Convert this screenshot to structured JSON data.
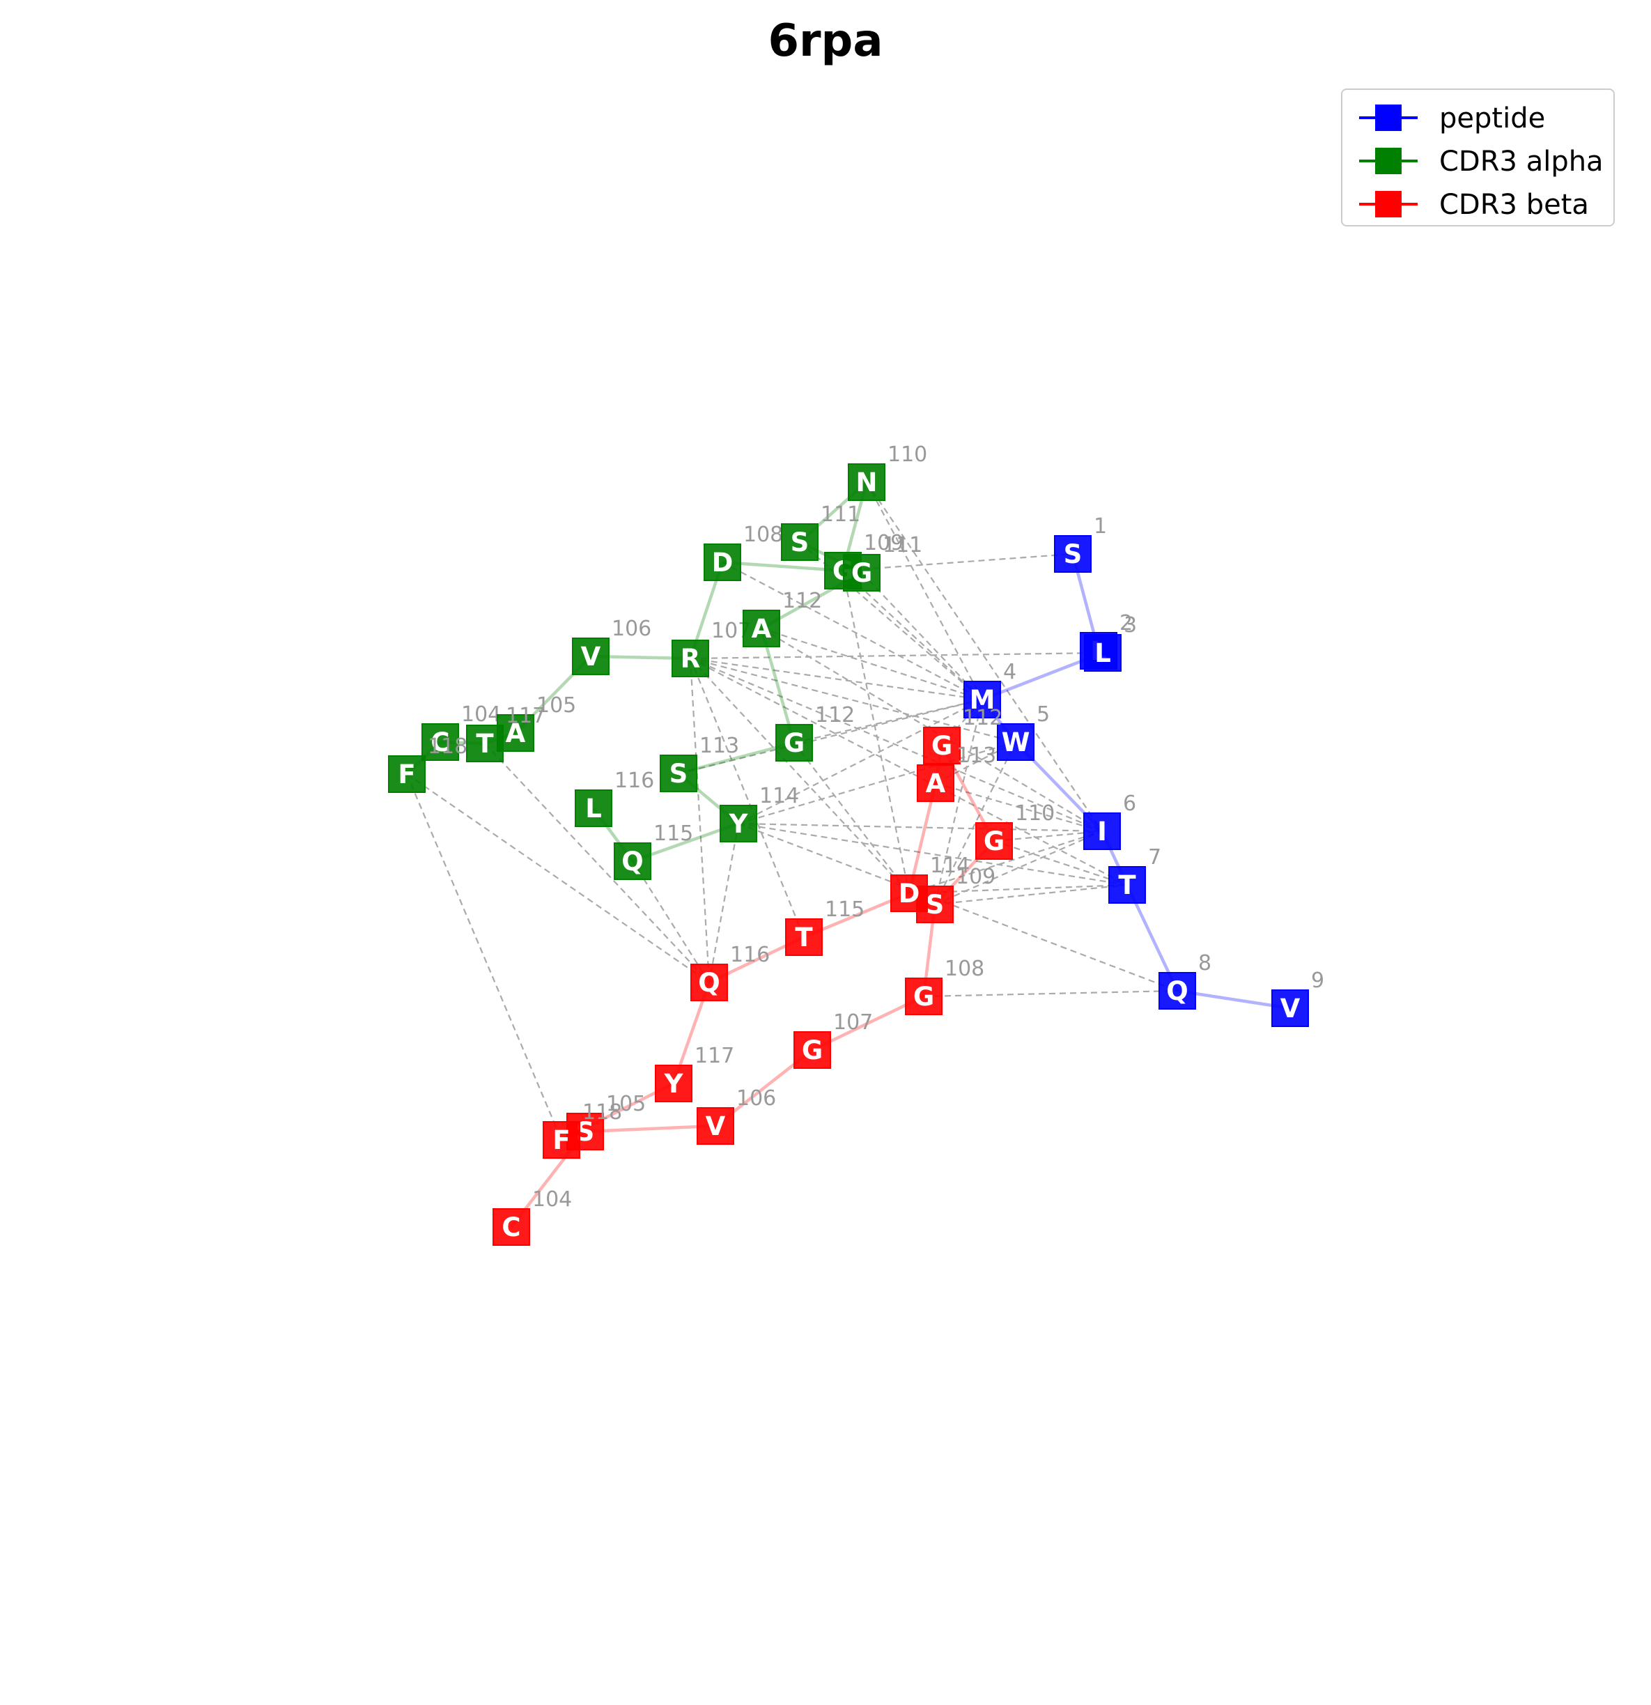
{
  "title": "6rpa",
  "colors": {
    "peptide": "#0000ff",
    "alpha": "#008000",
    "beta": "#ff0000",
    "contact": "#aaaaaa",
    "label": "#999999"
  },
  "legend": [
    {
      "label": "peptide",
      "color": "#0000ff"
    },
    {
      "label": "CDR3 alpha",
      "color": "#008000"
    },
    {
      "label": "CDR3 beta",
      "color": "#ff0000"
    }
  ],
  "chains": [
    {
      "name": "peptide",
      "color": "#0000ff",
      "residues": [
        {
          "aa": "S",
          "num": "1"
        },
        {
          "aa": "L",
          "num": "2"
        },
        {
          "aa": "L",
          "num": "3"
        },
        {
          "aa": "M",
          "num": "4"
        },
        {
          "aa": "W",
          "num": "5"
        },
        {
          "aa": "I",
          "num": "6"
        },
        {
          "aa": "T",
          "num": "7"
        },
        {
          "aa": "Q",
          "num": "8"
        },
        {
          "aa": "V",
          "num": "9"
        }
      ]
    },
    {
      "name": "CDR3 alpha",
      "color": "#008000",
      "residues": [
        {
          "aa": "C",
          "num": "104"
        },
        {
          "aa": "A",
          "num": "105"
        },
        {
          "aa": "V",
          "num": "106"
        },
        {
          "aa": "R",
          "num": "107"
        },
        {
          "aa": "D",
          "num": "108"
        },
        {
          "aa": "G",
          "num": "109"
        },
        {
          "aa": "N",
          "num": "110"
        },
        {
          "aa": "S",
          "num": "111"
        },
        {
          "aa": "G",
          "num": "111"
        },
        {
          "aa": "A",
          "num": "112"
        },
        {
          "aa": "G",
          "num": "112"
        },
        {
          "aa": "S",
          "num": "113"
        },
        {
          "aa": "Y",
          "num": "114"
        },
        {
          "aa": "Q",
          "num": "115"
        },
        {
          "aa": "L",
          "num": "116"
        },
        {
          "aa": "T",
          "num": "117"
        },
        {
          "aa": "F",
          "num": "118"
        }
      ]
    },
    {
      "name": "CDR3 beta",
      "color": "#ff0000",
      "residues": [
        {
          "aa": "C",
          "num": "104"
        },
        {
          "aa": "S",
          "num": "105"
        },
        {
          "aa": "V",
          "num": "106"
        },
        {
          "aa": "G",
          "num": "107"
        },
        {
          "aa": "G",
          "num": "108"
        },
        {
          "aa": "S",
          "num": "109"
        },
        {
          "aa": "G",
          "num": "110"
        },
        {
          "aa": "G",
          "num": "112"
        },
        {
          "aa": "A",
          "num": "113"
        },
        {
          "aa": "D",
          "num": "114"
        },
        {
          "aa": "T",
          "num": "115"
        },
        {
          "aa": "Q",
          "num": "116"
        },
        {
          "aa": "Y",
          "num": "117"
        },
        {
          "aa": "F",
          "num": "118"
        }
      ]
    }
  ]
}
